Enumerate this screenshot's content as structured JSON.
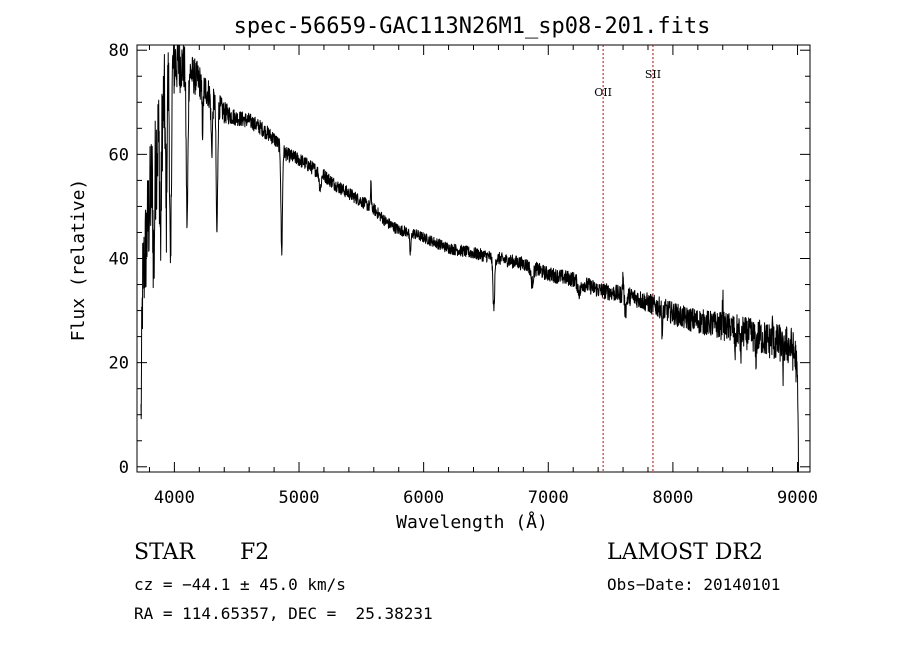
{
  "chart_data": {
    "type": "line",
    "title": "spec-56659-GAC113N26M1_sp08-201.fits",
    "xlabel": "Wavelength (Å)",
    "ylabel": "Flux (relative)",
    "xlim": [
      3700,
      9100
    ],
    "ylim": [
      -1,
      81
    ],
    "xticks": [
      4000,
      5000,
      6000,
      7000,
      8000,
      9000
    ],
    "yticks": [
      0,
      20,
      40,
      60,
      80
    ],
    "line_color": "#000000",
    "marker_color": "#cc0000",
    "emission_lines": [
      {
        "label": "OII",
        "wavelength": 7440
      },
      {
        "label": "SII",
        "wavelength": 7840
      }
    ],
    "continuum": [
      [
        3730,
        5
      ],
      [
        3745,
        35
      ],
      [
        3780,
        45
      ],
      [
        3820,
        55
      ],
      [
        3870,
        63
      ],
      [
        3920,
        70
      ],
      [
        3970,
        76
      ],
      [
        4020,
        78
      ],
      [
        4070,
        77
      ],
      [
        4120,
        76
      ],
      [
        4200,
        74
      ],
      [
        4300,
        71
      ],
      [
        4400,
        68
      ],
      [
        4500,
        67
      ],
      [
        4600,
        66.5
      ],
      [
        4700,
        65
      ],
      [
        4800,
        63
      ],
      [
        4900,
        60
      ],
      [
        5000,
        59
      ],
      [
        5100,
        57.5
      ],
      [
        5200,
        56
      ],
      [
        5300,
        54
      ],
      [
        5400,
        52.5
      ],
      [
        5500,
        51
      ],
      [
        5600,
        49.5
      ],
      [
        5700,
        47
      ],
      [
        5800,
        45.5
      ],
      [
        5900,
        45
      ],
      [
        6000,
        44
      ],
      [
        6100,
        43
      ],
      [
        6200,
        42
      ],
      [
        6300,
        41.5
      ],
      [
        6400,
        41
      ],
      [
        6500,
        40.5
      ],
      [
        6600,
        40
      ],
      [
        6700,
        39.5
      ],
      [
        6800,
        39
      ],
      [
        6900,
        38
      ],
      [
        7000,
        37
      ],
      [
        7100,
        36.5
      ],
      [
        7200,
        36
      ],
      [
        7300,
        35
      ],
      [
        7400,
        34
      ],
      [
        7500,
        33.5
      ],
      [
        7600,
        33
      ],
      [
        7700,
        32.5
      ],
      [
        7800,
        31.5
      ],
      [
        7900,
        30.5
      ],
      [
        8000,
        29.5
      ],
      [
        8100,
        28.5
      ],
      [
        8200,
        28
      ],
      [
        8300,
        27.5
      ],
      [
        8400,
        27
      ],
      [
        8500,
        26.5
      ],
      [
        8600,
        25.5
      ],
      [
        8700,
        25
      ],
      [
        8800,
        24
      ],
      [
        8900,
        23.5
      ],
      [
        8950,
        23
      ],
      [
        8985,
        21
      ],
      [
        9000,
        16
      ],
      [
        9008,
        0
      ]
    ],
    "features": [
      {
        "center": 3835,
        "depth": -18,
        "width": 6
      },
      {
        "center": 3889,
        "depth": -22,
        "width": 6
      },
      {
        "center": 3934,
        "depth": -25,
        "width": 5
      },
      {
        "center": 3969,
        "depth": -42,
        "width": 6
      },
      {
        "center": 4102,
        "depth": -30,
        "width": 7
      },
      {
        "center": 4226,
        "depth": -8,
        "width": 5
      },
      {
        "center": 4300,
        "depth": -10,
        "width": 6
      },
      {
        "center": 4341,
        "depth": -25,
        "width": 6
      },
      {
        "center": 4861,
        "depth": -20,
        "width": 6
      },
      {
        "center": 5170,
        "depth": -3,
        "width": 8
      },
      {
        "center": 5577,
        "depth": 10,
        "width": 2
      },
      {
        "center": 5577,
        "depth": -6,
        "width": 1
      },
      {
        "center": 5893,
        "depth": -4,
        "width": 6
      },
      {
        "center": 6563,
        "depth": -10,
        "width": 7
      },
      {
        "center": 6870,
        "depth": -3,
        "width": 10
      },
      {
        "center": 7250,
        "depth": -2,
        "width": 12
      },
      {
        "center": 7600,
        "depth": 4,
        "width": 4
      },
      {
        "center": 7620,
        "depth": -3,
        "width": 8
      },
      {
        "center": 7915,
        "depth": -5,
        "width": 4
      },
      {
        "center": 8400,
        "depth": 6,
        "width": 3
      },
      {
        "center": 8500,
        "depth": -4,
        "width": 5
      },
      {
        "center": 8545,
        "depth": -4,
        "width": 5
      },
      {
        "center": 8665,
        "depth": -4,
        "width": 5
      },
      {
        "center": 8800,
        "depth": 3,
        "width": 3
      },
      {
        "center": 8885,
        "depth": -5,
        "width": 4
      }
    ],
    "noise": [
      [
        3700,
        9
      ],
      [
        3850,
        12
      ],
      [
        4100,
        4
      ],
      [
        4500,
        1.5
      ],
      [
        6000,
        1.0
      ],
      [
        7500,
        1.6
      ],
      [
        8300,
        2.5
      ],
      [
        9000,
        4
      ]
    ]
  },
  "info": {
    "object_type": "STAR",
    "subclass": "F2",
    "survey": "LAMOST DR2",
    "redshift_line": "cz = −44.1 ± 45.0 km/s",
    "obs_date_line": "Obs−Date: 20140101",
    "coords_line": "RA = 114.65357, DEC =  25.38231"
  }
}
